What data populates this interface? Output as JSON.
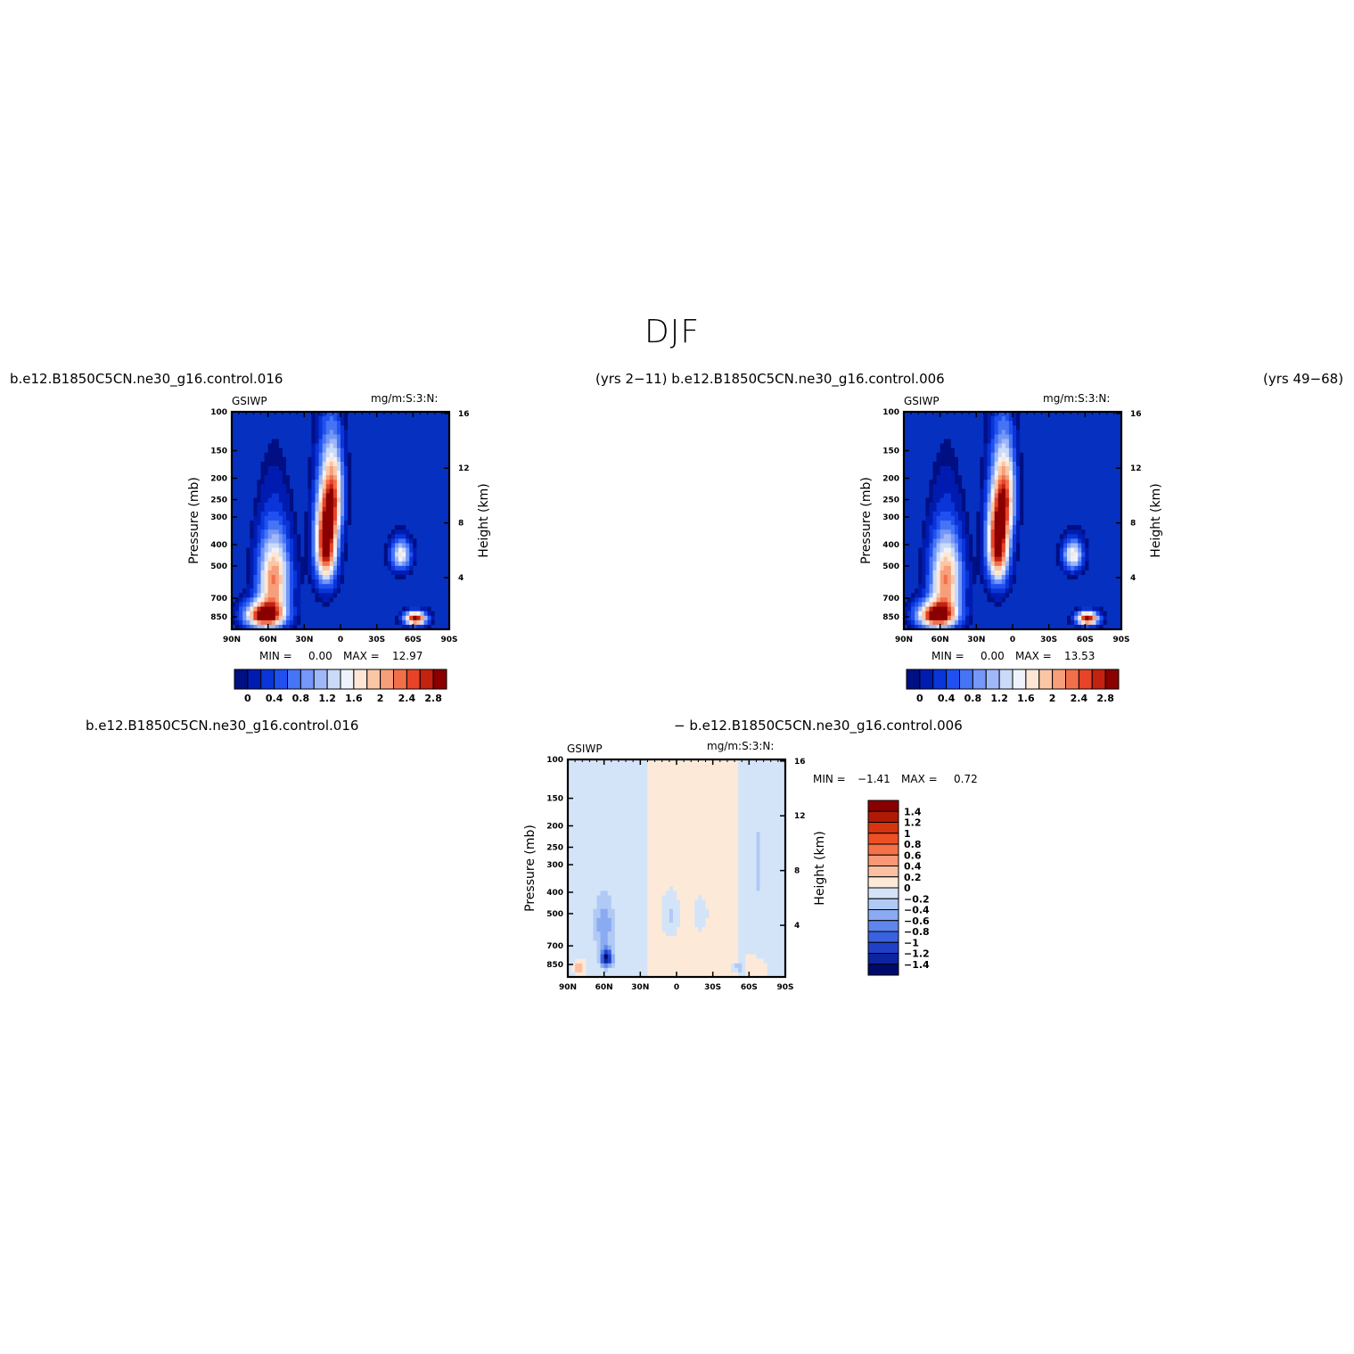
{
  "figure": {
    "title": "DJF",
    "top_left_header": "b.e12.B1850C5CN.ne30_g16.control.016",
    "top_mid_header": "(yrs 2−11) b.e12.B1850C5CN.ne30_g16.control.006",
    "top_right_header": "(yrs 49−68)",
    "bottom_left_header": "b.e12.B1850C5CN.ne30_g16.control.016",
    "bottom_right_header": "− b.e12.B1850C5CN.ne30_g16.control.006"
  },
  "colors": {
    "deep_blue": "#000f82",
    "background_blue": "#0630c0",
    "dark_red": "#8a0000"
  },
  "chart_data": [
    {
      "type": "heatmap",
      "name": "panel-1",
      "left_string": "GSIWP",
      "right_string": "mg/m:S:3:N:",
      "xlabel": "",
      "ylabel": "Pressure (mb)",
      "ylabel_right": "Height (km)",
      "x_ticks": [
        "90N",
        "60N",
        "30N",
        "0",
        "30S",
        "60S",
        "90S"
      ],
      "y_ticks": [
        "100",
        "150",
        "200",
        "250",
        "300",
        "400",
        "500",
        "700",
        "850"
      ],
      "y_ticks_right": [
        "16",
        "12",
        "8",
        "4"
      ],
      "stats": {
        "min_label": "MIN =",
        "min": "0.00",
        "max_label": "MAX =",
        "max": "12.97"
      },
      "colorbar_labels": [
        "0",
        "0.4",
        "0.8",
        "1.2",
        "1.6",
        "2",
        "2.4",
        "2.8"
      ],
      "blobs": [
        {
          "lat": 63,
          "p": 820,
          "value": 3.2,
          "sx": 16,
          "sy": 110
        },
        {
          "lat": 55,
          "p": 560,
          "value": 2.4,
          "sx": 13,
          "sy": 240
        },
        {
          "lat": 12,
          "p": 380,
          "value": 3.4,
          "sx": 9,
          "sy": 190
        },
        {
          "lat": 5,
          "p": 230,
          "value": 1.8,
          "sx": 8,
          "sy": 110
        },
        {
          "lat": -50,
          "p": 440,
          "value": 1.8,
          "sx": 8,
          "sy": 70
        },
        {
          "lat": -62,
          "p": 850,
          "value": 3.2,
          "sx": 9,
          "sy": 60
        }
      ]
    },
    {
      "type": "heatmap",
      "name": "panel-2",
      "left_string": "GSIWP",
      "right_string": "mg/m:S:3:N:",
      "xlabel": "",
      "ylabel": "Pressure (mb)",
      "ylabel_right": "Height (km)",
      "x_ticks": [
        "90N",
        "60N",
        "30N",
        "0",
        "30S",
        "60S",
        "90S"
      ],
      "y_ticks": [
        "100",
        "150",
        "200",
        "250",
        "300",
        "400",
        "500",
        "700",
        "850"
      ],
      "y_ticks_right": [
        "16",
        "12",
        "8",
        "4"
      ],
      "stats": {
        "min_label": "MIN =",
        "min": "0.00",
        "max_label": "MAX =",
        "max": "13.53"
      },
      "colorbar_labels": [
        "0",
        "0.4",
        "0.8",
        "1.2",
        "1.6",
        "2",
        "2.4",
        "2.8"
      ],
      "blobs": [
        {
          "lat": 63,
          "p": 820,
          "value": 3.2,
          "sx": 16,
          "sy": 110
        },
        {
          "lat": 55,
          "p": 560,
          "value": 2.4,
          "sx": 13,
          "sy": 240
        },
        {
          "lat": 12,
          "p": 380,
          "value": 3.4,
          "sx": 9,
          "sy": 190
        },
        {
          "lat": 5,
          "p": 230,
          "value": 1.8,
          "sx": 8,
          "sy": 110
        },
        {
          "lat": -50,
          "p": 440,
          "value": 1.9,
          "sx": 8,
          "sy": 70
        },
        {
          "lat": -62,
          "p": 850,
          "value": 3.2,
          "sx": 9,
          "sy": 60
        }
      ]
    },
    {
      "type": "heatmap",
      "name": "difference",
      "left_string": "GSIWP",
      "right_string": "mg/m:S:3:N:",
      "xlabel": "",
      "ylabel": "Pressure (mb)",
      "ylabel_right": "Height (km)",
      "x_ticks": [
        "90N",
        "60N",
        "30N",
        "0",
        "30S",
        "60S",
        "90S"
      ],
      "y_ticks": [
        "100",
        "150",
        "200",
        "250",
        "300",
        "400",
        "500",
        "700",
        "850"
      ],
      "y_ticks_right": [
        "16",
        "12",
        "8",
        "4"
      ],
      "stats": {
        "min_label": "MIN =",
        "min": "−1.41",
        "max_label": "MAX =",
        "max": "0.72"
      },
      "colorbar_labels": [
        "1.4",
        "1.2",
        "1",
        "0.8",
        "0.6",
        "0.4",
        "0.2",
        "0",
        "−0.2",
        "−0.4",
        "−0.6",
        "−0.8",
        "−1",
        "−1.2",
        "−1.4"
      ]
    }
  ]
}
